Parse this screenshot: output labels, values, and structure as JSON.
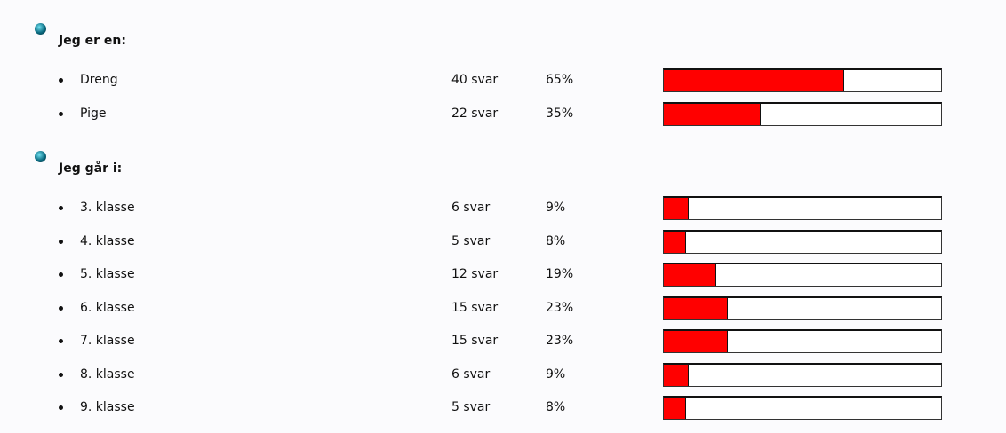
{
  "sections": [
    {
      "title": "Jeg er en:",
      "items": [
        {
          "label": "Dreng",
          "answers": "40 svar",
          "percent": 65,
          "percent_label": "65%"
        },
        {
          "label": "Pige",
          "answers": "22 svar",
          "percent": 35,
          "percent_label": "35%"
        }
      ]
    },
    {
      "title": "Jeg går i:",
      "items": [
        {
          "label": "3. klasse",
          "answers": "6 svar",
          "percent": 9,
          "percent_label": "9%"
        },
        {
          "label": "4. klasse",
          "answers": "5 svar",
          "percent": 8,
          "percent_label": "8%"
        },
        {
          "label": "5. klasse",
          "answers": "12 svar",
          "percent": 19,
          "percent_label": "19%"
        },
        {
          "label": "6. klasse",
          "answers": "15 svar",
          "percent": 23,
          "percent_label": "23%"
        },
        {
          "label": "7. klasse",
          "answers": "15 svar",
          "percent": 23,
          "percent_label": "23%"
        },
        {
          "label": "8. klasse",
          "answers": "6 svar",
          "percent": 9,
          "percent_label": "9%"
        },
        {
          "label": "9. klasse",
          "answers": "5 svar",
          "percent": 8,
          "percent_label": "8%"
        }
      ]
    }
  ]
}
